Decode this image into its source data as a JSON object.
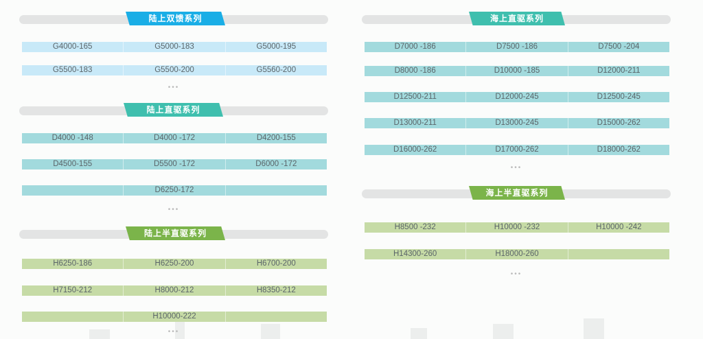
{
  "colors": {
    "blue": "#1aaee6",
    "teal": "#3fbfae",
    "green": "#7bb44a",
    "row_blue": "#c8e9f8",
    "row_teal": "#a2dadd",
    "row_green": "#c6dba6"
  },
  "sections": [
    {
      "title": "陆上双馈系列",
      "rows": [
        [
          "G4000-165",
          "G5000-183",
          "G5000-195"
        ],
        [
          "G5500-183",
          "G5500-200",
          "G5560-200"
        ]
      ],
      "more": "•••"
    },
    {
      "title": "陆上直驱系列",
      "rows": [
        [
          "D4000 -148",
          "D4000 -172",
          "D4200-155"
        ],
        [
          "D4500-155",
          "D5500 -172",
          "D6000 -172"
        ],
        [
          "",
          "D6250-172",
          ""
        ]
      ],
      "more": "•••"
    },
    {
      "title": "陆上半直驱系列",
      "rows": [
        [
          "H6250-186",
          "H6250-200",
          "H6700-200"
        ],
        [
          "H7150-212",
          "H8000-212",
          "H8350-212"
        ],
        [
          "",
          "H10000-222",
          ""
        ]
      ],
      "more": "•••"
    },
    {
      "title": "海上直驱系列",
      "rows": [
        [
          "D7000 -186",
          "D7500 -186",
          "D7500 -204"
        ],
        [
          "D8000 -186",
          "D10000 -185",
          "D12000-211"
        ],
        [
          "D12500-211",
          "D12000-245",
          "D12500-245"
        ],
        [
          "D13000-211",
          "D13000-245",
          "D15000-262"
        ],
        [
          "D16000-262",
          "D17000-262",
          "D18000-262"
        ]
      ],
      "more": "•••"
    },
    {
      "title": "海上半直驱系列",
      "rows": [
        [
          "H8500 -232",
          "H10000 -232",
          "H10000 -242"
        ],
        [
          "H14300-260",
          "H18000-260",
          ""
        ]
      ],
      "more": "•••"
    }
  ]
}
